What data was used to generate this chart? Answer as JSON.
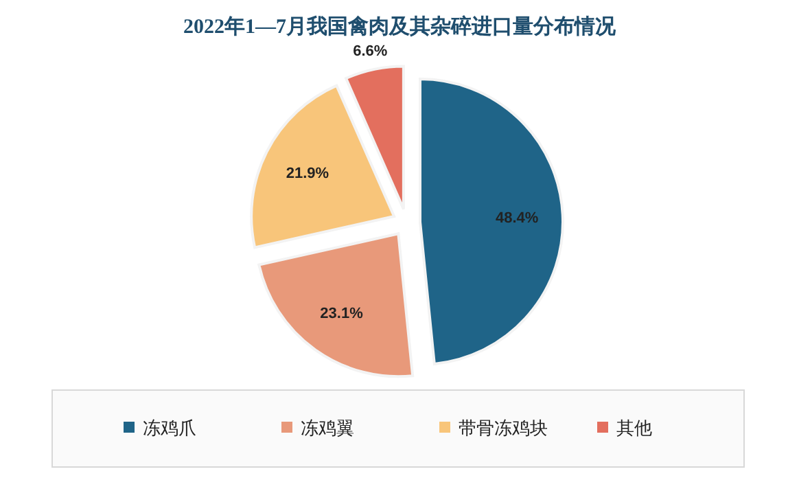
{
  "chart_data": {
    "type": "pie",
    "title": "2022年1—7月我国禽肉及其杂碎进口量分布情况",
    "categories": [
      "冻鸡爪",
      "冻鸡翼",
      "带骨冻鸡块",
      "其他"
    ],
    "values": [
      48.4,
      23.1,
      21.9,
      6.6
    ],
    "colors": [
      "#1f6488",
      "#e8997a",
      "#f8c57a",
      "#e36f5e"
    ],
    "value_labels": [
      "48.4%",
      "23.1%",
      "21.9%",
      "6.6%"
    ],
    "legend": "bottom"
  }
}
